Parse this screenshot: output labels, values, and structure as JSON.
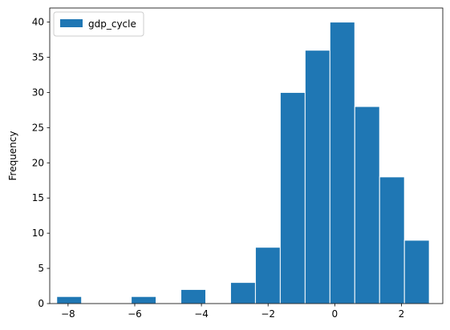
{
  "chart_data": {
    "type": "bar",
    "title": "",
    "xlabel": "",
    "ylabel": "Frequency",
    "xlim": [
      -8.55,
      3.24
    ],
    "ylim": [
      0,
      42
    ],
    "xticks": [
      -8,
      -6,
      -4,
      -2,
      0,
      2
    ],
    "xtick_labels": [
      "−8",
      "−6",
      "−4",
      "−2",
      "0",
      "2"
    ],
    "yticks": [
      0,
      5,
      10,
      15,
      20,
      25,
      30,
      35,
      40
    ],
    "ytick_labels": [
      "0",
      "5",
      "10",
      "15",
      "20",
      "25",
      "30",
      "35",
      "40"
    ],
    "grid": false,
    "legend": {
      "position": "top-left",
      "entries": [
        "gdp_cycle"
      ]
    },
    "series": [
      {
        "name": "gdp_cycle",
        "color": "#1f77b4",
        "edgecolor": "#ffffff",
        "bin_edges": [
          -8.34,
          -7.595,
          -6.85,
          -6.105,
          -5.36,
          -4.615,
          -3.87,
          -3.125,
          -2.38,
          -1.635,
          -0.89,
          -0.145,
          0.6,
          1.345,
          2.09,
          2.835
        ],
        "counts": [
          1,
          0,
          0,
          1,
          0,
          2,
          0,
          3,
          8,
          30,
          36,
          40,
          28,
          18,
          9
        ]
      }
    ]
  }
}
